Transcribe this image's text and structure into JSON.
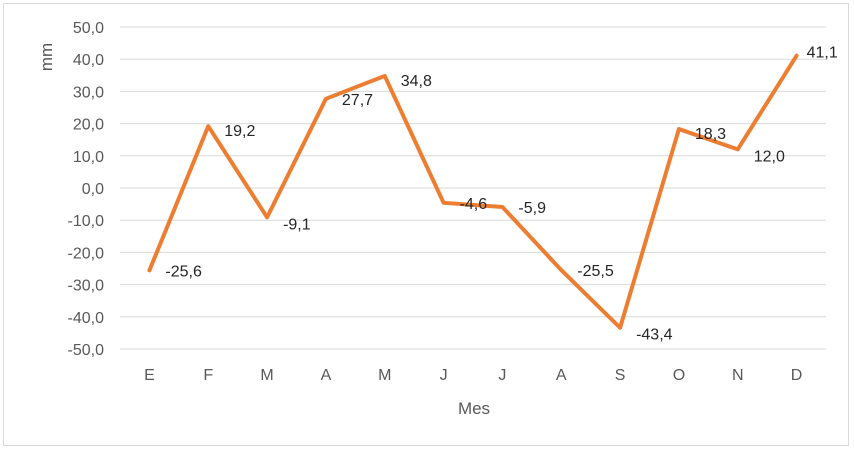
{
  "chart_data": {
    "type": "line",
    "categories": [
      "E",
      "F",
      "M",
      "A",
      "M",
      "J",
      "J",
      "A",
      "S",
      "O",
      "N",
      "D"
    ],
    "series": [
      {
        "values": [
          -25.6,
          19.2,
          -9.1,
          27.7,
          34.8,
          -4.6,
          -5.9,
          -25.5,
          -43.4,
          18.3,
          12.0,
          41.1
        ],
        "labels": [
          "-25,6",
          "19,2",
          "-9,1",
          "27,7",
          "34,8",
          "-4,6",
          "-5,9",
          "-25,5",
          "-43,4",
          "18,3",
          "12,0",
          "41,1"
        ],
        "color": "#ED7D31"
      }
    ],
    "title": "",
    "xlabel": "Mes",
    "ylabel": "mm",
    "ylim": [
      -50,
      50
    ],
    "yticks": [
      50,
      40,
      30,
      20,
      10,
      0,
      -10,
      -20,
      -30,
      -40,
      -50
    ],
    "ytick_labels": [
      "50,0",
      "40,0",
      "30,0",
      "20,0",
      "10,0",
      "0,0",
      "-10,0",
      "-20,0",
      "-30,0",
      "-40,0",
      "-50,0"
    ],
    "grid": true,
    "legend": "none"
  },
  "colors": {
    "line": "#ED7D31",
    "grid": "#D9D9D9",
    "tick_text": "#595959",
    "label_text": "#262626"
  }
}
